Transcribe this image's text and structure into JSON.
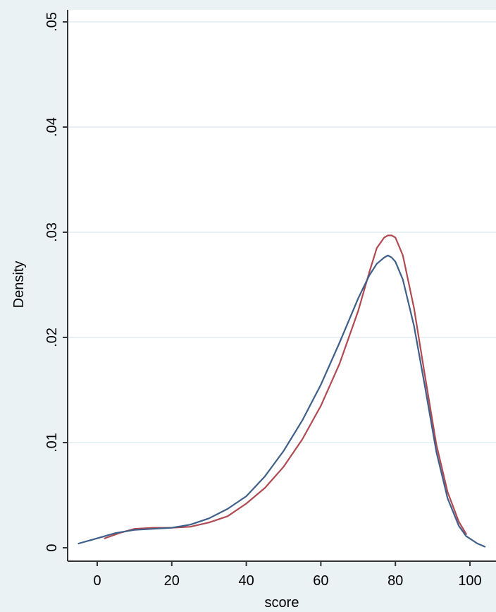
{
  "chart_data": {
    "type": "line",
    "title": "",
    "xlabel": "score",
    "ylabel": "Density",
    "xlim": [
      -6,
      106
    ],
    "ylim": [
      0,
      0.05
    ],
    "x_ticks": [
      0,
      20,
      40,
      60,
      80,
      100
    ],
    "x_tick_labels": [
      "0",
      "20",
      "40",
      "60",
      "80",
      "100"
    ],
    "y_ticks": [
      0,
      0.01,
      0.02,
      0.03,
      0.04,
      0.05
    ],
    "y_tick_labels": [
      "0",
      ".01",
      ".02",
      ".03",
      ".04",
      ".05"
    ],
    "grid": true,
    "legend": "none",
    "colors": {
      "outer_background": "#eaf2f3",
      "plot_background": "#ffffff",
      "gridline": "#e8f1f3",
      "axis": "#333333"
    },
    "series": [
      {
        "color": "#b04a52",
        "x": [
          2,
          6,
          10,
          15,
          20,
          25,
          30,
          35,
          40,
          45,
          50,
          55,
          60,
          65,
          70,
          73,
          75,
          77,
          78,
          79,
          80,
          82,
          85,
          88,
          91,
          94,
          97,
          99
        ],
        "y": [
          0.0009,
          0.0014,
          0.0018,
          0.0019,
          0.0019,
          0.002,
          0.0024,
          0.003,
          0.0042,
          0.0057,
          0.0077,
          0.0103,
          0.0135,
          0.0175,
          0.0225,
          0.0262,
          0.0285,
          0.0295,
          0.0297,
          0.0297,
          0.0295,
          0.0278,
          0.0228,
          0.0162,
          0.0098,
          0.0053,
          0.0025,
          0.0013
        ]
      },
      {
        "color": "#3e5f8a",
        "x": [
          -5,
          0,
          5,
          10,
          15,
          20,
          25,
          30,
          35,
          40,
          45,
          50,
          55,
          60,
          65,
          70,
          73,
          75,
          77,
          78,
          79,
          80,
          82,
          85,
          88,
          91,
          94,
          97,
          99,
          102,
          104
        ],
        "y": [
          0.0004,
          0.0009,
          0.0014,
          0.0017,
          0.0018,
          0.0019,
          0.0022,
          0.0028,
          0.0037,
          0.0049,
          0.0068,
          0.0092,
          0.0121,
          0.0155,
          0.0195,
          0.0237,
          0.0259,
          0.027,
          0.0276,
          0.0278,
          0.0276,
          0.0272,
          0.0255,
          0.0211,
          0.0152,
          0.0091,
          0.0047,
          0.0021,
          0.0011,
          0.0004,
          0.0001
        ]
      }
    ]
  }
}
